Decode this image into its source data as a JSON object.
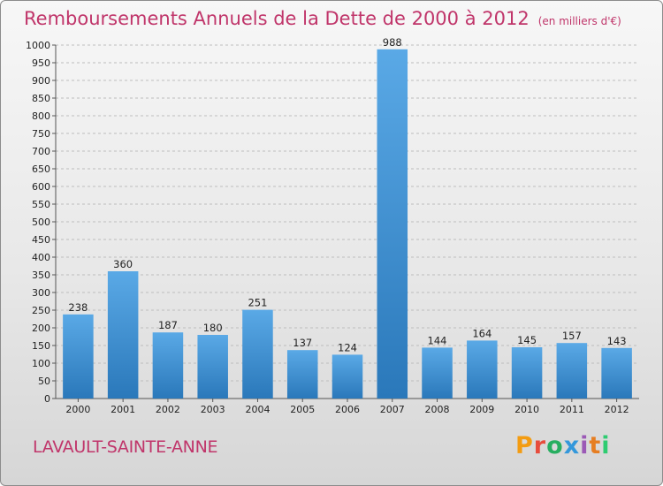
{
  "header": {
    "title": "Remboursements Annuels de la Dette de 2000 à 2012",
    "subtitle": "(en milliers d'€)"
  },
  "footer": {
    "location": "LAVAULT-SAINTE-ANNE",
    "logo_text": "Proxiti"
  },
  "colors": {
    "accent": "#c0356a",
    "bar_top": "#5aa9e6",
    "bar_bottom": "#2a78ba",
    "logo_letters": [
      "#f39c12",
      "#e74c3c",
      "#27ae60",
      "#3498db",
      "#9b59b6",
      "#e67e22",
      "#2ecc71"
    ]
  },
  "chart_data": {
    "type": "bar",
    "title": "Remboursements Annuels de la Dette de 2000 à 2012",
    "categories": [
      "2000",
      "2001",
      "2002",
      "2003",
      "2004",
      "2005",
      "2006",
      "2007",
      "2008",
      "2009",
      "2010",
      "2011",
      "2012"
    ],
    "values": [
      238,
      360,
      187,
      180,
      251,
      137,
      124,
      988,
      144,
      164,
      145,
      157,
      143
    ],
    "ylim": [
      0,
      1000
    ],
    "ytick_step": 50,
    "grid": true,
    "data_labels": true
  }
}
